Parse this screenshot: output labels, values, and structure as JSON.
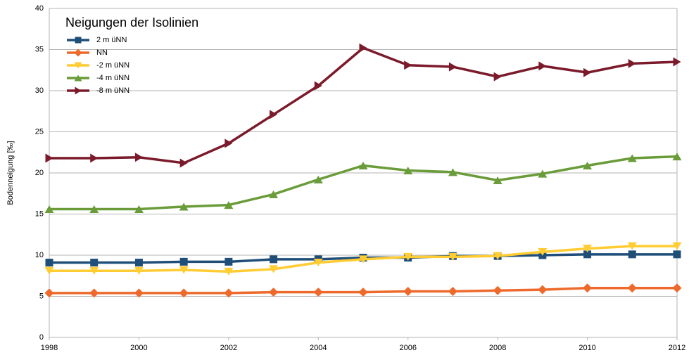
{
  "chart_data": {
    "type": "line",
    "title": "Neigungen der Isolinien",
    "y_label": "Bodenneigung [‰]",
    "x": [
      1998,
      1999,
      2000,
      2001,
      2002,
      2003,
      2004,
      2005,
      2006,
      2007,
      2008,
      2009,
      2010,
      2011,
      2012
    ],
    "series": [
      {
        "name": "2 m üNN",
        "color": "#1f4e79",
        "marker": "square",
        "values": [
          9.1,
          9.1,
          9.1,
          9.2,
          9.2,
          9.5,
          9.5,
          9.7,
          9.7,
          9.9,
          9.9,
          10.0,
          10.1,
          10.1,
          10.1
        ]
      },
      {
        "name": "NN",
        "color": "#ee6a2c",
        "marker": "diamond",
        "values": [
          5.4,
          5.4,
          5.4,
          5.4,
          5.4,
          5.5,
          5.5,
          5.5,
          5.6,
          5.6,
          5.7,
          5.8,
          6.0,
          6.0,
          6.0
        ]
      },
      {
        "name": "-2 m üNN",
        "color": "#ffcc33",
        "marker": "triangle-down",
        "values": [
          8.1,
          8.1,
          8.1,
          8.2,
          8.0,
          8.3,
          9.1,
          9.5,
          9.8,
          9.8,
          9.9,
          10.4,
          10.8,
          11.1,
          11.1
        ]
      },
      {
        "name": "-4 m üNN",
        "color": "#6a9c3a",
        "marker": "triangle-up",
        "values": [
          15.6,
          15.6,
          15.6,
          15.9,
          16.1,
          17.4,
          19.2,
          20.9,
          20.3,
          20.1,
          19.1,
          19.9,
          20.9,
          21.8,
          22.0
        ]
      },
      {
        "name": "-8 m üNN",
        "color": "#7b1a2a",
        "marker": "triangle-right",
        "values": [
          21.8,
          21.8,
          21.9,
          21.2,
          23.6,
          27.1,
          30.6,
          35.2,
          33.1,
          32.9,
          31.7,
          33.0,
          32.2,
          33.3,
          33.5
        ]
      }
    ],
    "xlim": [
      1998,
      2012
    ],
    "xticks": [
      1998,
      2000,
      2002,
      2004,
      2006,
      2008,
      2010,
      2012
    ],
    "ylim": [
      0,
      40
    ],
    "yticks": [
      0,
      5,
      10,
      15,
      20,
      25,
      30,
      35,
      40
    ],
    "grid": true,
    "legend": "upper left"
  }
}
